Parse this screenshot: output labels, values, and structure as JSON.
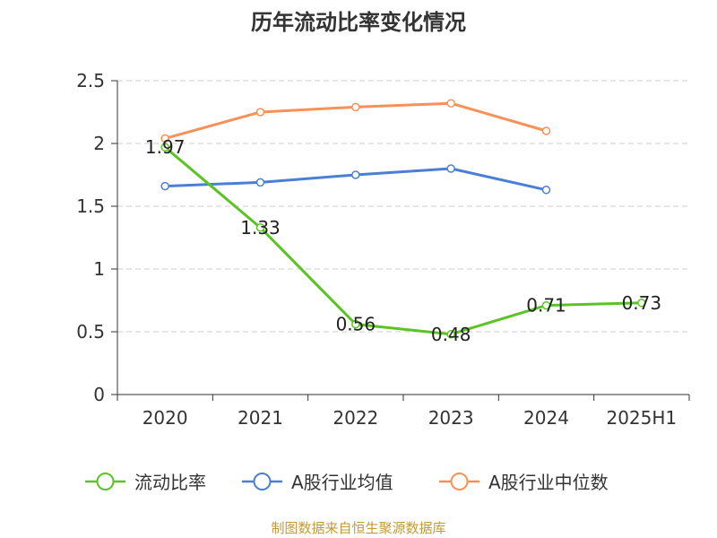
{
  "source_note": "制图数据来自恒生聚源数据库",
  "chart_data": {
    "type": "line",
    "title": "历年流动比率变化情况",
    "xlabel": "",
    "ylabel": "",
    "categories": [
      "2020",
      "2021",
      "2022",
      "2023",
      "2024",
      "2025H1"
    ],
    "ylim": [
      0,
      2.5
    ],
    "yticks": [
      "0",
      "0.5",
      "1",
      "1.5",
      "2",
      "2.5"
    ],
    "grid": true,
    "legend_position": "bottom",
    "series": [
      {
        "name": "流动比率",
        "color": "#5bc424",
        "values": [
          1.97,
          1.33,
          0.56,
          0.48,
          0.71,
          0.73
        ],
        "labels": [
          "1.97",
          "1.33",
          "0.56",
          "0.48",
          "0.71",
          "0.73"
        ]
      },
      {
        "name": "A股行业均值",
        "color": "#4a7fd6",
        "values": [
          1.66,
          1.69,
          1.75,
          1.8,
          1.63,
          null
        ]
      },
      {
        "name": "A股行业中位数",
        "color": "#f79158",
        "values": [
          2.04,
          2.25,
          2.29,
          2.32,
          2.1,
          null
        ]
      }
    ]
  }
}
